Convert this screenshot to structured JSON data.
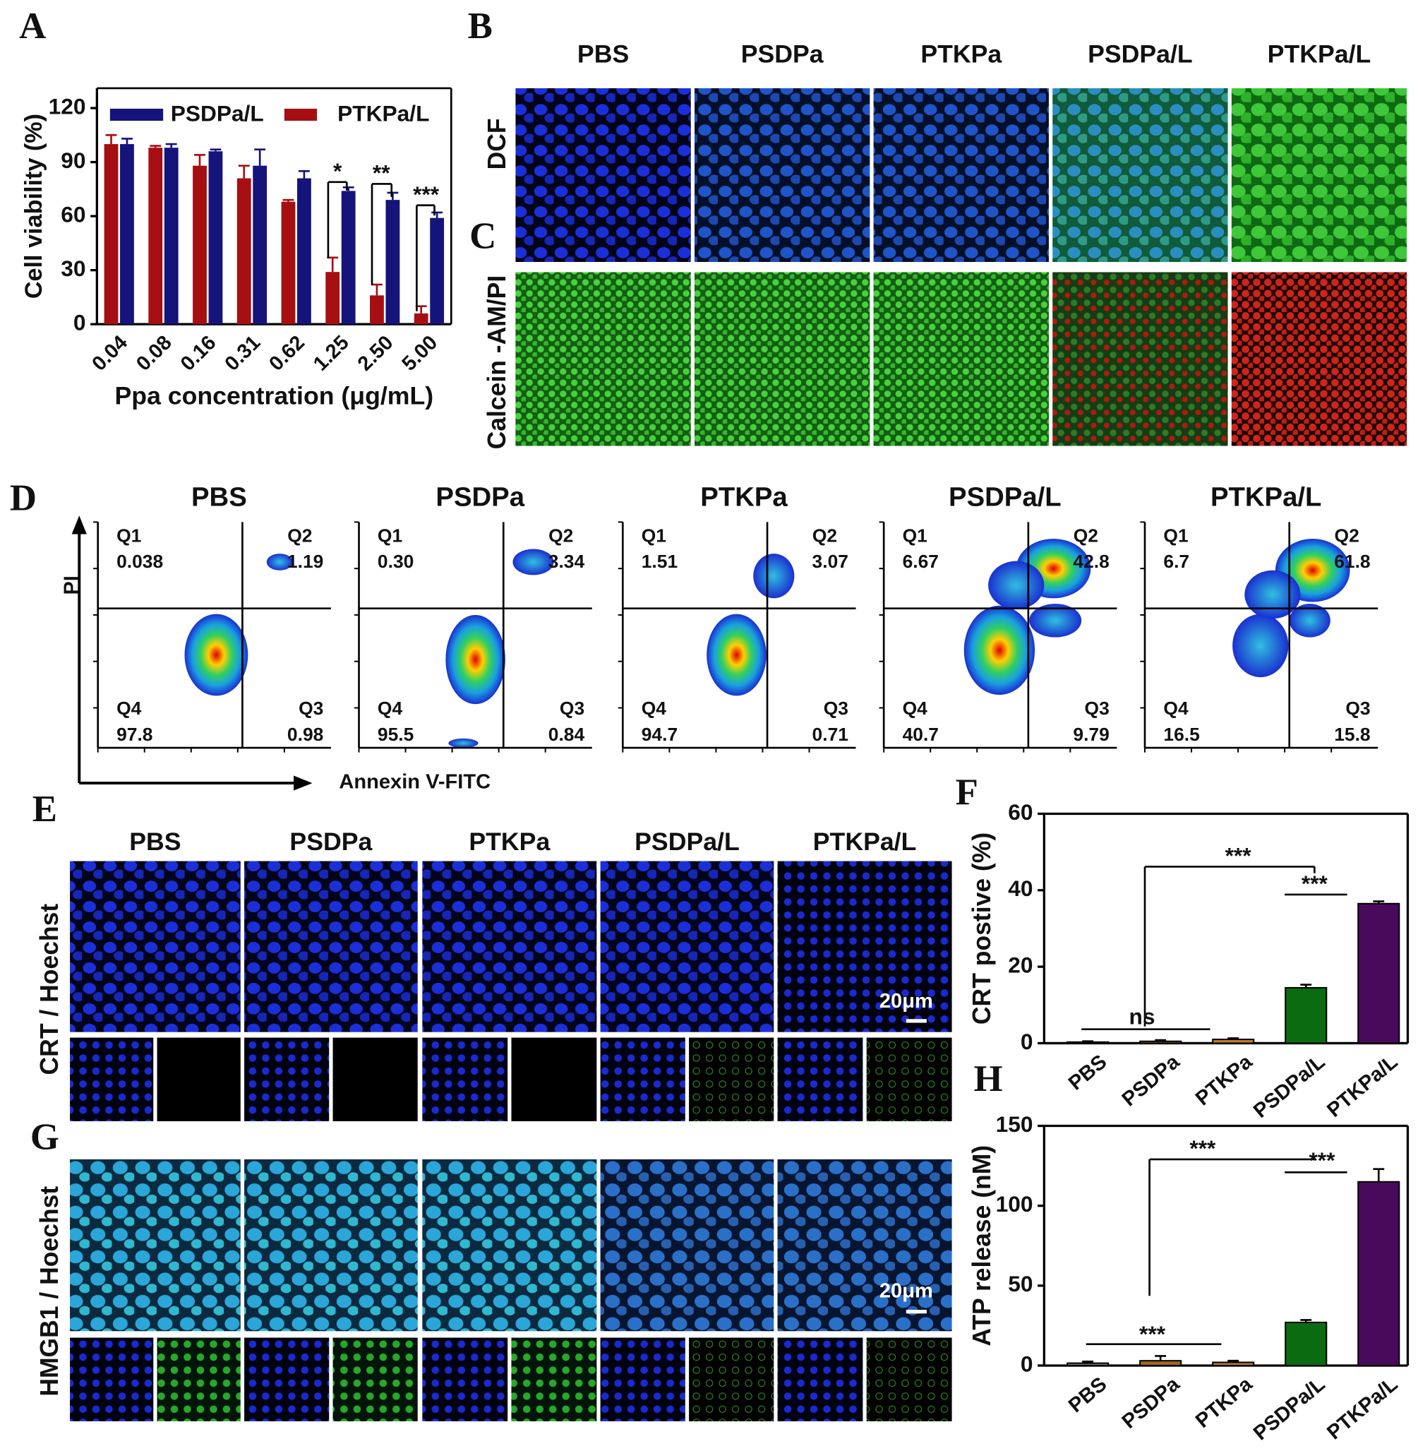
{
  "panel_labels": [
    "A",
    "B",
    "C",
    "D",
    "E",
    "F",
    "G",
    "H"
  ],
  "groups": [
    "PBS",
    "PSDPa",
    "PTKPa",
    "PSDPa/L",
    "PTKPa/L"
  ],
  "fluorescence": {
    "rows": [
      "DCF",
      "Calcein -AM/PI"
    ]
  },
  "flow": {
    "y_label": "PI",
    "x_label": "Annexin V-FITC",
    "quadrants": [
      "Q1",
      "Q2",
      "Q3",
      "Q4"
    ],
    "plots": [
      {
        "Q1": "0.038",
        "Q2": "1.19",
        "Q3": "0.98",
        "Q4": "97.8"
      },
      {
        "Q1": "0.30",
        "Q2": "3.34",
        "Q3": "0.84",
        "Q4": "95.5"
      },
      {
        "Q1": "1.51",
        "Q2": "3.07",
        "Q3": "0.71",
        "Q4": "94.7"
      },
      {
        "Q1": "6.67",
        "Q2": "42.8",
        "Q3": "9.79",
        "Q4": "40.7"
      },
      {
        "Q1": "6.7",
        "Q2": "61.8",
        "Q3": "15.8",
        "Q4": "16.5"
      }
    ]
  },
  "crt": {
    "row_label": "CRT / Hoechst",
    "scale_bar": "20μm"
  },
  "hmgb1": {
    "row_label": "HMGB1 / Hoechst",
    "scale_bar": "20μm"
  },
  "chart_data": [
    {
      "type": "grouped-bar",
      "ylabel": "Cell viability (%)",
      "xlabel": "Ppa concentration (μg/mL)",
      "categories": [
        "0.04",
        "0.08",
        "0.16",
        "0.31",
        "0.62",
        "1.25",
        "2.50",
        "5.00"
      ],
      "series": [
        {
          "name": "PSDPa/L",
          "color": "#14147a",
          "values": [
            100,
            98,
            96,
            88,
            81,
            74,
            69,
            59
          ],
          "errors": [
            3,
            2,
            1,
            9,
            4,
            2,
            4,
            3
          ]
        },
        {
          "name": "PTKPa/L",
          "color": "#a50f12",
          "values": [
            100,
            98,
            88,
            81,
            68,
            29,
            16,
            6
          ],
          "errors": [
            5,
            1,
            6,
            7,
            1,
            8,
            6,
            4
          ]
        }
      ],
      "ylim": [
        0,
        131
      ],
      "yticks": [
        0,
        30,
        60,
        90,
        120
      ],
      "annotations": [
        "*",
        "**",
        "***"
      ]
    },
    {
      "type": "bar",
      "ylabel": "CRT postive (%)",
      "categories": [
        "PBS",
        "PSDPa",
        "PTKPa",
        "PSDPa/L",
        "PTKPa/L"
      ],
      "values": [
        0.3,
        0.5,
        1.0,
        14.5,
        36.5
      ],
      "errors": [
        0.2,
        0.3,
        0.3,
        0.8,
        0.6
      ],
      "colors": [
        "#777777",
        "#a0661e",
        "#c07a20",
        "#0b6b10",
        "#4a0a5c"
      ],
      "ylim": [
        0,
        60
      ],
      "yticks": [
        0,
        20,
        40,
        60
      ],
      "annotations": [
        "***",
        "***",
        "ns"
      ]
    },
    {
      "type": "bar",
      "ylabel": "ATP release (nM)",
      "categories": [
        "PBS",
        "PSDPa",
        "PTKPa",
        "PSDPa/L",
        "PTKPa/L"
      ],
      "values": [
        1.5,
        3,
        2,
        27,
        115
      ],
      "errors": [
        1,
        3,
        1,
        1.5,
        8
      ],
      "colors": [
        "#777777",
        "#a0661e",
        "#c07a20",
        "#0b6b10",
        "#4a0a5c"
      ],
      "ylim": [
        0,
        150
      ],
      "yticks": [
        0,
        50,
        100,
        150
      ],
      "annotations": [
        "***",
        "***",
        "***"
      ]
    }
  ]
}
